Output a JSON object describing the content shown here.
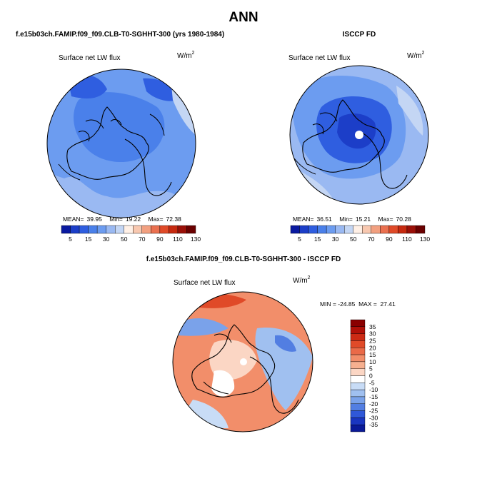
{
  "figure": {
    "title": "ANN",
    "colors": {
      "background": "#ffffff",
      "coast": "#000000",
      "land_dark": "#1e1e1e"
    }
  },
  "chart_data": [
    {
      "type": "heatmap",
      "projection": "north-polar-stereographic",
      "panel": "top-left",
      "run_title": "f.e15b03ch.FAMIP.f09_f09.CLB-T0-SGHHT-300 (yrs 1980-1984)",
      "field_label": "Surface net LW flux",
      "units_base": "W/m",
      "units_exp": "2",
      "stats": {
        "mean_label": "MEAN=",
        "mean": "39.95",
        "min_label": "Min=",
        "min": "19.22",
        "max_label": "Max=",
        "max": "72.38"
      },
      "pole_hole": false,
      "colorbar": {
        "orientation": "horizontal",
        "labels": [
          "5",
          "15",
          "30",
          "50",
          "70",
          "90",
          "110",
          "130"
        ],
        "colors": [
          "#0a1aa0",
          "#1c3ec8",
          "#2f5ee0",
          "#4a80ea",
          "#6c9cf0",
          "#9ab9f2",
          "#c4d6f4",
          "#fff0e6",
          "#f8c8b0",
          "#f2a080",
          "#ea7050",
          "#e04a28",
          "#c62a10",
          "#9a1008",
          "#6a0000"
        ]
      }
    },
    {
      "type": "heatmap",
      "projection": "north-polar-stereographic",
      "panel": "top-right",
      "run_title": "ISCCP FD",
      "field_label": "Surface net LW flux",
      "units_base": "W/m",
      "units_exp": "2",
      "stats": {
        "mean_label": "MEAN=",
        "mean": "36.51",
        "min_label": "Min=",
        "min": "15.21",
        "max_label": "Max=",
        "max": "70.28"
      },
      "pole_hole": true,
      "colorbar": {
        "orientation": "horizontal",
        "labels": [
          "5",
          "15",
          "30",
          "50",
          "70",
          "90",
          "110",
          "130"
        ],
        "colors": [
          "#0a1aa0",
          "#1c3ec8",
          "#2f5ee0",
          "#4a80ea",
          "#6c9cf0",
          "#9ab9f2",
          "#c4d6f4",
          "#fff0e6",
          "#f8c8b0",
          "#f2a080",
          "#ea7050",
          "#e04a28",
          "#c62a10",
          "#9a1008",
          "#6a0000"
        ]
      }
    },
    {
      "type": "heatmap",
      "projection": "north-polar-stereographic",
      "panel": "bottom",
      "run_title": "f.e15b03ch.FAMIP.f09_f09.CLB-T0-SGHHT-300 - ISCCP FD",
      "field_label": "Surface net LW flux",
      "units_base": "W/m",
      "units_exp": "2",
      "stats_line": "MIN = -24.85  MAX =  27.41",
      "pole_hole": true,
      "colorbar": {
        "orientation": "vertical",
        "labels": [
          "35",
          "30",
          "25",
          "20",
          "15",
          "10",
          "5",
          "0",
          "-5",
          "-10",
          "-15",
          "-20",
          "-25",
          "-30",
          "-35"
        ],
        "colors": [
          "#8a0000",
          "#b01008",
          "#cc2a14",
          "#e04a28",
          "#ea6a48",
          "#f28e6a",
          "#f6b090",
          "#fbd6c4",
          "#ffffff",
          "#c8dcf6",
          "#a0c0f0",
          "#7aa2ea",
          "#527ee2",
          "#3058d8",
          "#1a36c0",
          "#0a1a98"
        ]
      }
    }
  ]
}
